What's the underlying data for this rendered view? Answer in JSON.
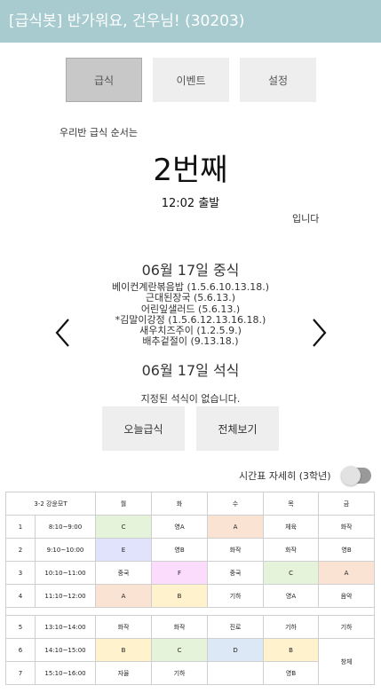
{
  "header": {
    "title": "[급식봇] 반가워요, 건우님!  (30203)"
  },
  "tabs": [
    {
      "label": "급식",
      "active": true
    },
    {
      "label": "이벤트",
      "active": false
    },
    {
      "label": "설정",
      "active": false
    }
  ],
  "order": {
    "label": "우리반 급식 순서는",
    "value": "2번째",
    "departure": "12:02 출발",
    "suffix": "입니다"
  },
  "nav": {
    "prev_icon": "chevron-left-icon",
    "next_icon": "chevron-right-icon"
  },
  "lunch": {
    "title": "06월 17일 중식",
    "items": [
      "베이컨계란볶음밥  (1.5.6.10.13.18.)",
      "근대된장국  (5.6.13.)",
      "어린잎샐러드  (5.6.13.)",
      "*김말이강정  (1.5.6.12.13.16.18.)",
      "새우치즈주이  (1.2.5.9.)",
      "배추겉절이  (9.13.18.)"
    ]
  },
  "dinner": {
    "title": "06월 17일 석식",
    "message": "지정된 석식이 없습니다."
  },
  "buttons": {
    "today": "오늘급식",
    "all": "전체보기"
  },
  "timetable_toggle": {
    "label": "시간표 자세히 (3학년)",
    "on": false
  },
  "timetable": {
    "class_label": "3-2  강윤모T",
    "days": [
      "월",
      "화",
      "수",
      "목",
      "금"
    ],
    "rows": [
      {
        "period": "1",
        "time": "8:10~9:00",
        "cells": [
          "C",
          "영A",
          "A",
          "체육",
          "화작"
        ]
      },
      {
        "period": "2",
        "time": "9:10~10:00",
        "cells": [
          "E",
          "영B",
          "화작",
          "화작",
          "영B"
        ]
      },
      {
        "period": "3",
        "time": "10:10~11:00",
        "cells": [
          "중국",
          "F",
          "중국",
          "C",
          "A"
        ]
      },
      {
        "period": "4",
        "time": "11:10~12:00",
        "cells": [
          "A",
          "B",
          "기하",
          "영A",
          "음악"
        ]
      },
      {
        "period": "5",
        "time": "13:10~14:00",
        "cells": [
          "화작",
          "화작",
          "진로",
          "기하",
          "기하"
        ]
      },
      {
        "period": "6",
        "time": "14:10~15:00",
        "cells": [
          "B",
          "C",
          "D",
          "B",
          "창체"
        ]
      },
      {
        "period": "7",
        "time": "15:10~16:00",
        "cells": [
          "자율",
          "기하",
          "",
          "영B"
        ]
      }
    ],
    "colors": {
      "A": "#fbe3d3",
      "B": "#fff2cc",
      "C": "#e4f3d9",
      "D": "#dce8f5",
      "E": "#e1e2fb",
      "F": "#fcdcfc",
      "grid": "#cfcfcf",
      "header": "#a8cbd0"
    }
  }
}
